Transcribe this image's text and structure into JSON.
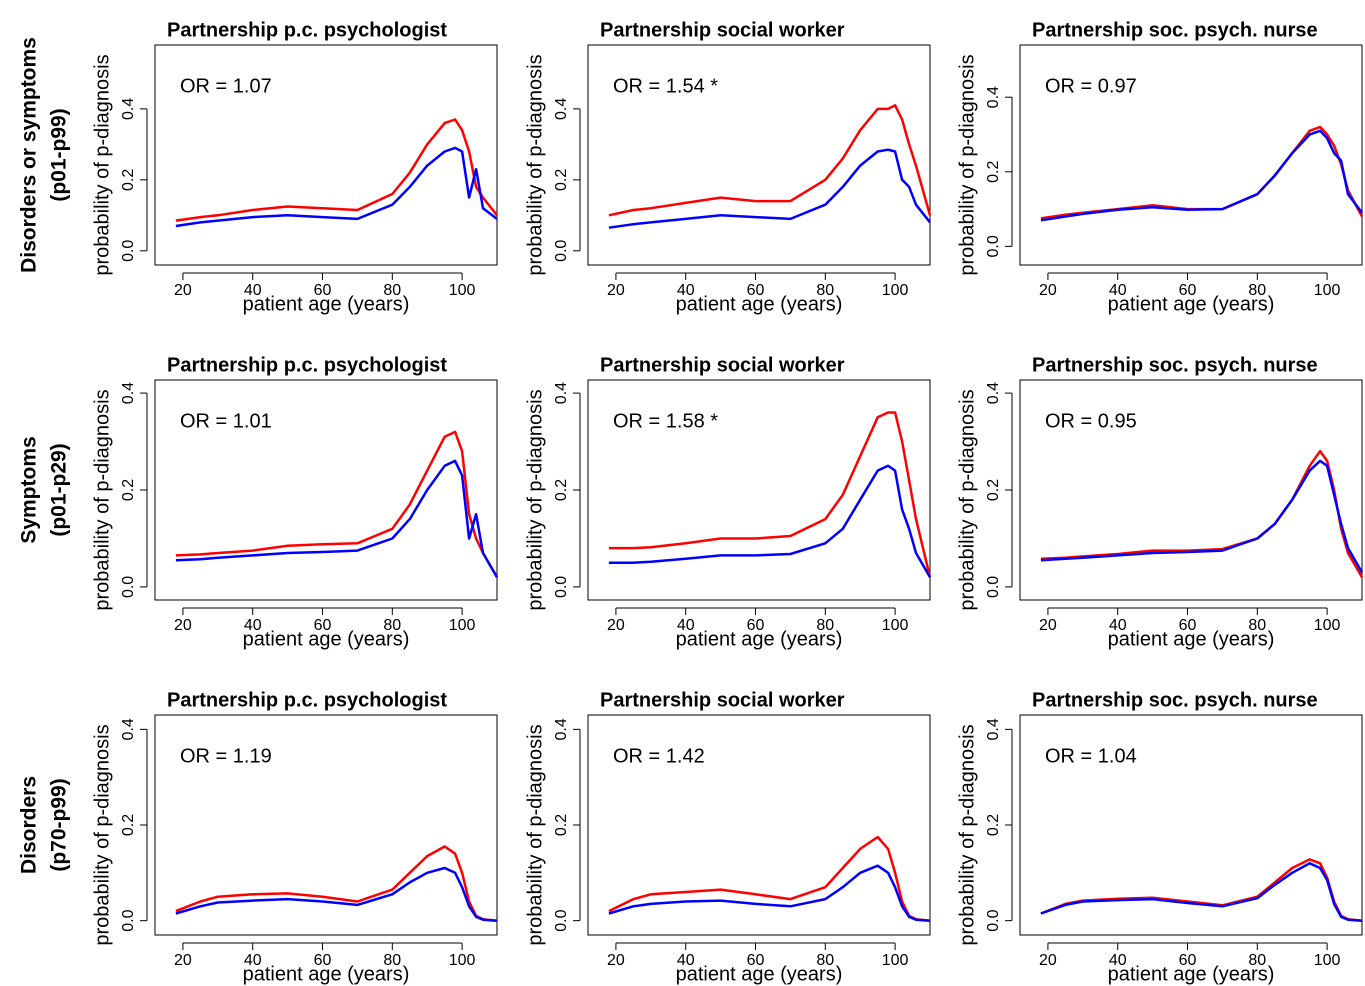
{
  "row_labels": [
    [
      "Disorders or symptoms",
      "(p01-p99)"
    ],
    [
      "Symptoms",
      "(p01-p29)"
    ],
    [
      "Disorders",
      "(p70-p99)"
    ]
  ],
  "chart_data": [
    {
      "type": "line",
      "title": "Partnership p.c. psychologist",
      "annotation": "OR = 1.07",
      "xlabel": "patient age (years)",
      "ylabel": "probability of p-diagnosis",
      "x": [
        18,
        25,
        30,
        40,
        50,
        60,
        70,
        80,
        85,
        90,
        95,
        98,
        100,
        102,
        104,
        106,
        110
      ],
      "series": [
        {
          "color": "#ff0000",
          "values": [
            0.085,
            0.095,
            0.1,
            0.115,
            0.125,
            0.12,
            0.115,
            0.16,
            0.22,
            0.3,
            0.36,
            0.37,
            0.34,
            0.28,
            0.18,
            0.15,
            0.1
          ]
        },
        {
          "color": "#0000ff",
          "values": [
            0.07,
            0.08,
            0.085,
            0.095,
            0.1,
            0.095,
            0.09,
            0.13,
            0.18,
            0.24,
            0.28,
            0.29,
            0.28,
            0.15,
            0.23,
            0.12,
            0.09
          ]
        }
      ],
      "xlim": [
        12,
        110
      ],
      "ylim": [
        -0.04,
        0.58
      ],
      "xticks": [
        20,
        40,
        60,
        80,
        100
      ],
      "yticks": [
        {
          "value": 0,
          "label": "0.0"
        },
        0.2,
        0.4
      ]
    },
    {
      "type": "line",
      "title": "Partnership social worker",
      "annotation": "OR = 1.54 *",
      "xlabel": "patient age (years)",
      "ylabel": "probability of p-diagnosis",
      "x": [
        18,
        25,
        30,
        40,
        50,
        60,
        70,
        80,
        85,
        90,
        95,
        98,
        100,
        102,
        104,
        106,
        110
      ],
      "series": [
        {
          "color": "#ff0000",
          "values": [
            0.1,
            0.115,
            0.12,
            0.135,
            0.15,
            0.14,
            0.14,
            0.2,
            0.26,
            0.34,
            0.4,
            0.4,
            0.41,
            0.37,
            0.3,
            0.24,
            0.1
          ]
        },
        {
          "color": "#0000ff",
          "values": [
            0.065,
            0.075,
            0.08,
            0.09,
            0.1,
            0.095,
            0.09,
            0.13,
            0.18,
            0.24,
            0.28,
            0.285,
            0.28,
            0.2,
            0.18,
            0.13,
            0.08
          ]
        }
      ],
      "xlim": [
        12,
        110
      ],
      "ylim": [
        -0.04,
        0.58
      ],
      "xticks": [
        20,
        40,
        60,
        80,
        100
      ],
      "yticks": [
        {
          "value": 0,
          "label": "0.0"
        },
        0.2,
        0.4
      ]
    },
    {
      "type": "line",
      "title": "Partnership soc. psych. nurse",
      "annotation": "OR = 0.97",
      "xlabel": "patient age (years)",
      "ylabel": "probability of p-diagnosis",
      "x": [
        18,
        25,
        30,
        40,
        50,
        60,
        70,
        80,
        85,
        90,
        95,
        98,
        100,
        102,
        104,
        106,
        110
      ],
      "series": [
        {
          "color": "#ff0000",
          "values": [
            0.075,
            0.085,
            0.09,
            0.1,
            0.11,
            0.1,
            0.1,
            0.14,
            0.19,
            0.25,
            0.31,
            0.32,
            0.3,
            0.27,
            0.22,
            0.15,
            0.08
          ]
        },
        {
          "color": "#0000ff",
          "values": [
            0.07,
            0.08,
            0.087,
            0.098,
            0.105,
            0.098,
            0.1,
            0.14,
            0.19,
            0.25,
            0.3,
            0.31,
            0.29,
            0.25,
            0.23,
            0.14,
            0.09
          ]
        }
      ],
      "xlim": [
        12,
        110
      ],
      "ylim": [
        -0.05,
        0.54
      ],
      "xticks": [
        20,
        40,
        60,
        80,
        100
      ],
      "yticks": [
        {
          "value": 0,
          "label": "0.0"
        },
        0.2,
        0.4
      ]
    },
    {
      "type": "line",
      "title": "Partnership p.c. psychologist",
      "annotation": "OR = 1.01",
      "xlabel": "patient age (years)",
      "ylabel": "probability of p-diagnosis",
      "x": [
        18,
        25,
        30,
        40,
        50,
        60,
        70,
        80,
        85,
        90,
        95,
        98,
        100,
        102,
        104,
        106,
        110
      ],
      "series": [
        {
          "color": "#ff0000",
          "values": [
            0.065,
            0.067,
            0.07,
            0.075,
            0.085,
            0.088,
            0.09,
            0.12,
            0.17,
            0.24,
            0.31,
            0.32,
            0.28,
            0.15,
            0.1,
            0.07,
            0.02
          ]
        },
        {
          "color": "#0000ff",
          "values": [
            0.055,
            0.057,
            0.06,
            0.065,
            0.07,
            0.072,
            0.075,
            0.1,
            0.14,
            0.2,
            0.25,
            0.26,
            0.23,
            0.1,
            0.15,
            0.07,
            0.02
          ]
        }
      ],
      "xlim": [
        12,
        110
      ],
      "ylim": [
        -0.027,
        0.427
      ],
      "xticks": [
        20,
        40,
        60,
        80,
        100
      ],
      "yticks": [
        {
          "value": 0,
          "label": "0.0"
        },
        0.2,
        0.4
      ]
    },
    {
      "type": "line",
      "title": "Partnership social worker",
      "annotation": "OR = 1.58 *",
      "xlabel": "patient age (years)",
      "ylabel": "probability of p-diagnosis",
      "x": [
        18,
        25,
        30,
        40,
        50,
        60,
        70,
        80,
        85,
        90,
        95,
        98,
        100,
        102,
        104,
        106,
        110
      ],
      "series": [
        {
          "color": "#ff0000",
          "values": [
            0.08,
            0.08,
            0.082,
            0.09,
            0.1,
            0.1,
            0.105,
            0.14,
            0.19,
            0.27,
            0.35,
            0.36,
            0.36,
            0.3,
            0.22,
            0.14,
            0.02
          ]
        },
        {
          "color": "#0000ff",
          "values": [
            0.05,
            0.05,
            0.052,
            0.058,
            0.065,
            0.065,
            0.068,
            0.09,
            0.12,
            0.18,
            0.24,
            0.25,
            0.24,
            0.16,
            0.12,
            0.07,
            0.02
          ]
        }
      ],
      "xlim": [
        12,
        110
      ],
      "ylim": [
        -0.027,
        0.427
      ],
      "xticks": [
        20,
        40,
        60,
        80,
        100
      ],
      "yticks": [
        {
          "value": 0,
          "label": "0.0"
        },
        0.2,
        0.4
      ]
    },
    {
      "type": "line",
      "title": "Partnership soc. psych. nurse",
      "annotation": "OR = 0.95",
      "xlabel": "patient age (years)",
      "ylabel": "probability of p-diagnosis",
      "x": [
        18,
        25,
        30,
        40,
        50,
        60,
        70,
        80,
        85,
        90,
        95,
        98,
        100,
        102,
        104,
        106,
        110
      ],
      "series": [
        {
          "color": "#ff0000",
          "values": [
            0.058,
            0.06,
            0.063,
            0.068,
            0.075,
            0.075,
            0.078,
            0.1,
            0.13,
            0.18,
            0.25,
            0.28,
            0.26,
            0.2,
            0.12,
            0.07,
            0.02
          ]
        },
        {
          "color": "#0000ff",
          "values": [
            0.055,
            0.058,
            0.06,
            0.065,
            0.07,
            0.072,
            0.075,
            0.1,
            0.13,
            0.18,
            0.24,
            0.26,
            0.25,
            0.19,
            0.13,
            0.08,
            0.03
          ]
        }
      ],
      "xlim": [
        12,
        110
      ],
      "ylim": [
        -0.027,
        0.427
      ],
      "xticks": [
        20,
        40,
        60,
        80,
        100
      ],
      "yticks": [
        {
          "value": 0,
          "label": "0.0"
        },
        0.2,
        0.4
      ]
    },
    {
      "type": "line",
      "title": "Partnership p.c. psychologist",
      "annotation": "OR = 1.19",
      "xlabel": "patient age (years)",
      "ylabel": "probability of p-diagnosis",
      "x": [
        18,
        25,
        30,
        40,
        50,
        60,
        70,
        80,
        85,
        90,
        95,
        98,
        100,
        102,
        104,
        106,
        110
      ],
      "series": [
        {
          "color": "#ff0000",
          "values": [
            0.02,
            0.04,
            0.05,
            0.055,
            0.057,
            0.05,
            0.04,
            0.065,
            0.1,
            0.135,
            0.155,
            0.14,
            0.1,
            0.04,
            0.01,
            0.003,
            0
          ]
        },
        {
          "color": "#0000ff",
          "values": [
            0.015,
            0.03,
            0.038,
            0.042,
            0.045,
            0.04,
            0.033,
            0.055,
            0.08,
            0.1,
            0.11,
            0.1,
            0.07,
            0.03,
            0.008,
            0.002,
            0
          ]
        }
      ],
      "xlim": [
        12,
        110
      ],
      "ylim": [
        -0.03,
        0.43
      ],
      "xticks": [
        20,
        40,
        60,
        80,
        100
      ],
      "yticks": [
        {
          "value": 0,
          "label": "0.0"
        },
        0.2,
        0.4
      ]
    },
    {
      "type": "line",
      "title": "Partnership social worker",
      "annotation": "OR = 1.42",
      "xlabel": "patient age (years)",
      "ylabel": "probability of p-diagnosis",
      "x": [
        18,
        25,
        30,
        40,
        50,
        60,
        70,
        80,
        85,
        90,
        95,
        98,
        100,
        102,
        104,
        106,
        110
      ],
      "series": [
        {
          "color": "#ff0000",
          "values": [
            0.02,
            0.045,
            0.055,
            0.06,
            0.065,
            0.055,
            0.045,
            0.07,
            0.11,
            0.15,
            0.175,
            0.15,
            0.1,
            0.04,
            0.01,
            0.003,
            0
          ]
        },
        {
          "color": "#0000ff",
          "values": [
            0.015,
            0.03,
            0.035,
            0.04,
            0.042,
            0.035,
            0.03,
            0.045,
            0.07,
            0.1,
            0.115,
            0.1,
            0.07,
            0.03,
            0.008,
            0.002,
            0
          ]
        }
      ],
      "xlim": [
        12,
        110
      ],
      "ylim": [
        -0.03,
        0.43
      ],
      "xticks": [
        20,
        40,
        60,
        80,
        100
      ],
      "yticks": [
        {
          "value": 0,
          "label": "0.0"
        },
        0.2,
        0.4
      ]
    },
    {
      "type": "line",
      "title": "Partnership soc. psych. nurse",
      "annotation": "OR = 1.04",
      "xlabel": "patient age (years)",
      "ylabel": "probability of p-diagnosis",
      "x": [
        18,
        25,
        30,
        40,
        50,
        60,
        70,
        80,
        85,
        90,
        95,
        98,
        100,
        102,
        104,
        106,
        110
      ],
      "series": [
        {
          "color": "#ff0000",
          "values": [
            0.015,
            0.035,
            0.042,
            0.046,
            0.048,
            0.04,
            0.032,
            0.05,
            0.08,
            0.11,
            0.128,
            0.12,
            0.09,
            0.04,
            0.01,
            0.003,
            0
          ]
        },
        {
          "color": "#0000ff",
          "values": [
            0.015,
            0.033,
            0.04,
            0.043,
            0.045,
            0.037,
            0.03,
            0.047,
            0.075,
            0.1,
            0.12,
            0.11,
            0.085,
            0.035,
            0.008,
            0.002,
            0
          ]
        }
      ],
      "xlim": [
        12,
        110
      ],
      "ylim": [
        -0.03,
        0.43
      ],
      "xticks": [
        20,
        40,
        60,
        80,
        100
      ],
      "yticks": [
        {
          "value": 0,
          "label": "0.0"
        },
        0.2,
        0.4
      ]
    }
  ]
}
